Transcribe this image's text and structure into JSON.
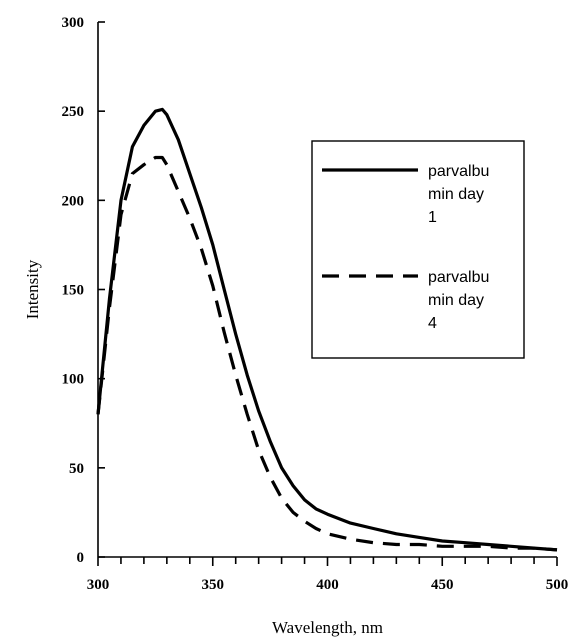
{
  "chart_data": {
    "type": "line",
    "xlabel": "Wavelength, nm",
    "ylabel": "Intensity",
    "xlim": [
      300,
      500
    ],
    "ylim": [
      0,
      300
    ],
    "x_ticks": [
      300,
      350,
      400,
      450,
      500
    ],
    "y_ticks": [
      0,
      50,
      100,
      150,
      200,
      250,
      300
    ],
    "grid": false,
    "legend_position": "right",
    "series": [
      {
        "name": "parvalbumin day 1",
        "legend_lines": [
          "parvalbu",
          "min day",
          "1"
        ],
        "style": "solid",
        "color": "#000000",
        "x": [
          300,
          305,
          310,
          315,
          320,
          325,
          328,
          330,
          335,
          340,
          345,
          350,
          355,
          360,
          365,
          370,
          375,
          380,
          385,
          390,
          395,
          400,
          410,
          420,
          430,
          440,
          450,
          460,
          470,
          480,
          490,
          500
        ],
        "y": [
          80,
          145,
          200,
          230,
          242,
          250,
          251,
          248,
          234,
          215,
          196,
          175,
          150,
          125,
          102,
          82,
          65,
          50,
          40,
          32,
          27,
          24,
          19,
          16,
          13,
          11,
          9,
          8,
          7,
          6,
          5,
          4
        ]
      },
      {
        "name": "parvalbumin day 4",
        "legend_lines": [
          "parvalbu",
          "min day",
          "4"
        ],
        "style": "dashed",
        "color": "#000000",
        "x": [
          300,
          305,
          310,
          315,
          320,
          325,
          328,
          330,
          335,
          340,
          345,
          350,
          355,
          360,
          365,
          370,
          375,
          380,
          385,
          390,
          395,
          400,
          410,
          420,
          430,
          440,
          450,
          460,
          470,
          480,
          490,
          500
        ],
        "y": [
          80,
          140,
          192,
          215,
          220,
          224,
          224,
          220,
          205,
          190,
          173,
          152,
          126,
          102,
          80,
          60,
          45,
          33,
          25,
          20,
          16,
          13,
          10,
          8,
          7,
          7,
          6,
          6,
          6,
          5,
          5,
          4
        ]
      }
    ]
  }
}
